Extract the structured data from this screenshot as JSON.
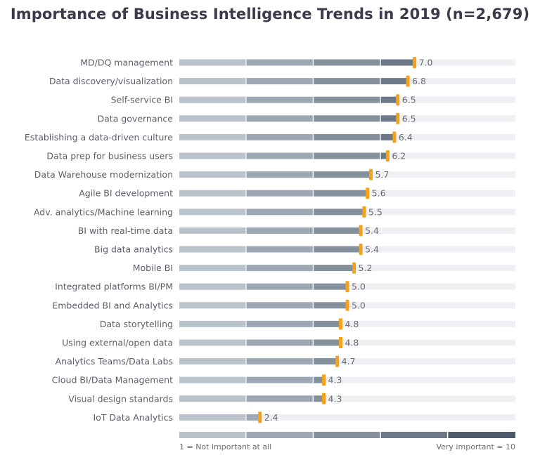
{
  "chart_data": {
    "type": "bar",
    "title": "Importance of Business Intelligence Trends in 2019 (n=2,679)",
    "categories": [
      "MD/DQ management",
      "Data discovery/visualization",
      "Self-service BI",
      "Data governance",
      "Establishing a data-driven culture",
      "Data prep for business users",
      "Data Warehouse modernization",
      "Agile BI development",
      "Adv. analytics/Machine learning",
      "BI with real-time data",
      "Big data analytics",
      "Mobile BI",
      "Integrated platforms BI/PM",
      "Embedded BI and Analytics",
      "Data storytelling",
      "Using external/open data",
      "Analytics Teams/Data Labs",
      "Cloud BI/Data Management",
      "Visual design standards",
      "IoT Data Analytics"
    ],
    "values": [
      7.0,
      6.8,
      6.5,
      6.5,
      6.4,
      6.2,
      5.7,
      5.6,
      5.5,
      5.4,
      5.4,
      5.2,
      5.0,
      5.0,
      4.8,
      4.8,
      4.7,
      4.3,
      4.3,
      2.4
    ],
    "value_labels": [
      "7.0",
      "6.8",
      "6.5",
      "6.5",
      "6.4",
      "6.2",
      "5.7",
      "5.6",
      "5.5",
      "5.4",
      "5.4",
      "5.2",
      "5.0",
      "5.0",
      "4.8",
      "4.8",
      "4.7",
      "4.3",
      "4.3",
      "2.4"
    ],
    "xlim": [
      0,
      10
    ],
    "segments": 5,
    "scale_min_label": "1 = Not important at all",
    "scale_max_label": "Very important = 10",
    "colors": {
      "segments": [
        "#bac2cb",
        "#9ea8b4",
        "#85909d",
        "#6c7887",
        "#4d5a6b"
      ],
      "track": "#eef0f3",
      "marker": "#f7a11a",
      "title": "#3a3a48"
    }
  }
}
